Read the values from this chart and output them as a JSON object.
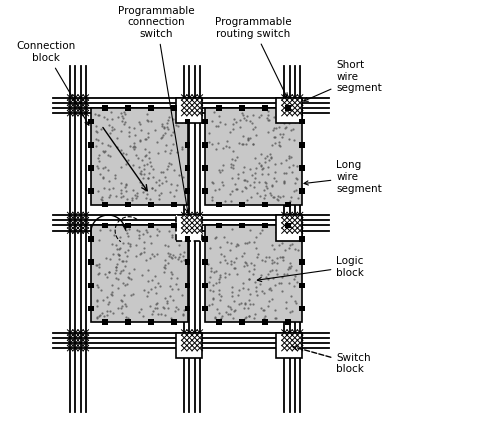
{
  "bg_color": "#ffffff",
  "fig_width": 4.86,
  "fig_height": 4.3,
  "dpi": 100,
  "labels": {
    "connection_block": "Connection\nblock",
    "prog_connection": "Programmable\nconnection\nswitch",
    "prog_routing": "Programmable\nrouting switch",
    "short_wire": "Short\nwire\nsegment",
    "long_wire": "Long\nwire\nsegment",
    "logic_block": "Logic\nblock",
    "switch_block": "Switch\nblock"
  }
}
